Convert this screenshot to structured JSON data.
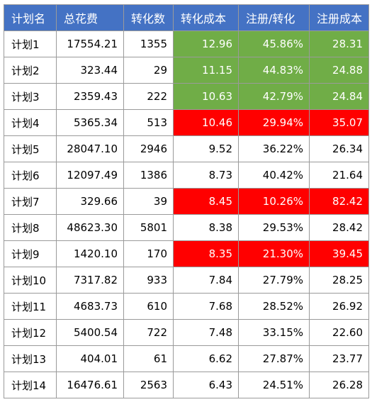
{
  "colors": {
    "header_bg": "#4472c4",
    "good": "#70ad47",
    "bad": "#ff0000"
  },
  "headers": [
    "计划名",
    "总花费",
    "转化数",
    "转化成本",
    "注册/转化",
    "注册成本"
  ],
  "rows": [
    {
      "name": "计划1",
      "spend": "17554.21",
      "conv": "1355",
      "cost": "12.96",
      "ratio": "45.86%",
      "reg_cost": "28.31",
      "status": "good"
    },
    {
      "name": "计划2",
      "spend": "323.44",
      "conv": "29",
      "cost": "11.15",
      "ratio": "44.83%",
      "reg_cost": "24.88",
      "status": "good"
    },
    {
      "name": "计划3",
      "spend": "2359.43",
      "conv": "222",
      "cost": "10.63",
      "ratio": "42.79%",
      "reg_cost": "24.84",
      "status": "good"
    },
    {
      "name": "计划4",
      "spend": "5365.34",
      "conv": "513",
      "cost": "10.46",
      "ratio": "29.94%",
      "reg_cost": "35.07",
      "status": "bad"
    },
    {
      "name": "计划5",
      "spend": "28047.10",
      "conv": "2946",
      "cost": "9.52",
      "ratio": "36.22%",
      "reg_cost": "26.34",
      "status": "none"
    },
    {
      "name": "计划6",
      "spend": "12097.49",
      "conv": "1386",
      "cost": "8.73",
      "ratio": "40.42%",
      "reg_cost": "21.64",
      "status": "none"
    },
    {
      "name": "计划7",
      "spend": "329.66",
      "conv": "39",
      "cost": "8.45",
      "ratio": "10.26%",
      "reg_cost": "82.42",
      "status": "bad"
    },
    {
      "name": "计划8",
      "spend": "48623.30",
      "conv": "5801",
      "cost": "8.38",
      "ratio": "29.53%",
      "reg_cost": "28.42",
      "status": "none"
    },
    {
      "name": "计划9",
      "spend": "1420.10",
      "conv": "170",
      "cost": "8.35",
      "ratio": "21.30%",
      "reg_cost": "39.45",
      "status": "bad"
    },
    {
      "name": "计划10",
      "spend": "7317.82",
      "conv": "933",
      "cost": "7.84",
      "ratio": "27.79%",
      "reg_cost": "28.25",
      "status": "none"
    },
    {
      "name": "计划11",
      "spend": "4683.73",
      "conv": "610",
      "cost": "7.68",
      "ratio": "28.52%",
      "reg_cost": "26.92",
      "status": "none"
    },
    {
      "name": "计划12",
      "spend": "5400.54",
      "conv": "722",
      "cost": "7.48",
      "ratio": "33.15%",
      "reg_cost": "22.60",
      "status": "none"
    },
    {
      "name": "计划13",
      "spend": "404.01",
      "conv": "61",
      "cost": "6.62",
      "ratio": "27.87%",
      "reg_cost": "23.77",
      "status": "none"
    },
    {
      "name": "计划14",
      "spend": "16476.61",
      "conv": "2563",
      "cost": "6.43",
      "ratio": "24.51%",
      "reg_cost": "26.28",
      "status": "none"
    }
  ]
}
